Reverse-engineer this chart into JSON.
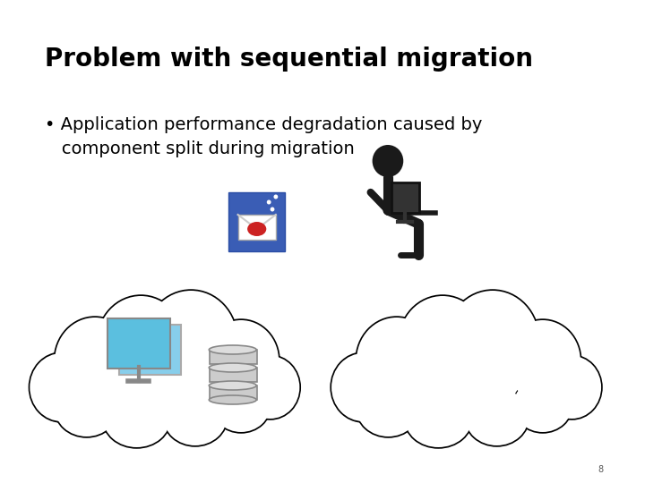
{
  "title": "Problem with sequential migration",
  "bullet": "• Application performance degradation caused by\n   component split during migration",
  "page_number": "8",
  "bg_color": "#ffffff",
  "title_color": "#000000",
  "title_fontsize": 20,
  "bullet_fontsize": 14,
  "cloud_lw": 3.0
}
